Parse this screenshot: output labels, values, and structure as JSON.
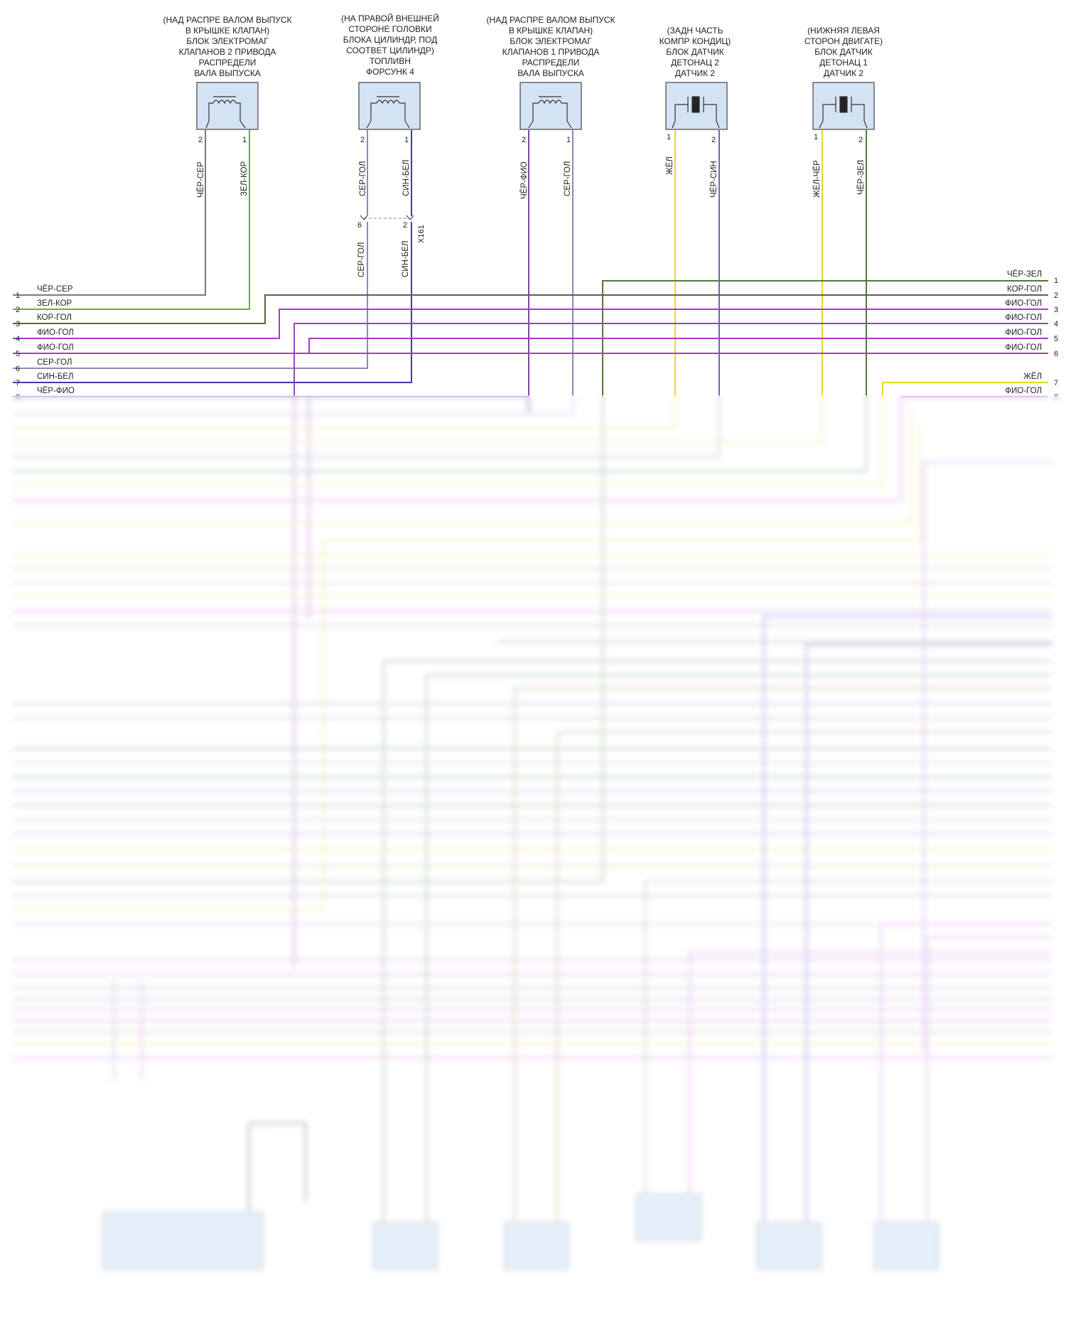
{
  "colors": {
    "gray": "#7a7a7a",
    "green": "#77a83a",
    "darkgreen": "#4f7a3b",
    "brown": "#6e5a44",
    "violet": "#a23fc4",
    "lightviolet": "#b980d8",
    "blue": "#3b3ab0",
    "yellow": "#e8d82b",
    "darkviolet": "#7a4aa0",
    "box_fill": "#d4e3f4"
  },
  "components": [
    {
      "id": "c1",
      "lines": [
        "(НАД РАСПРЕ ВАЛОМ ВЫПУСК",
        "В КРЫШКЕ КЛАПАН)",
        "БЛОК ЭЛЕКТРОМАГ",
        "КЛАПАНОВ 2 ПРИВОДА",
        "РАСПРЕДЕЛИ",
        "ВАЛА ВЫПУСКА"
      ],
      "icon": "coil-icon",
      "pins": [
        "2",
        "1"
      ],
      "wires": [
        "ЧЁР-СЕР",
        "ЗЕЛ-КОР"
      ]
    },
    {
      "id": "c2",
      "lines": [
        "(НА ПРАВОЙ ВНЕШНЕЙ",
        "СТОРОНЕ ГОЛОВКИ",
        "БЛОКА ЦИЛИНДР, ПОД",
        "СООТВЕТ ЦИЛИНДР)",
        "ТОПЛИВН",
        "ФОРСУНК 4"
      ],
      "icon": "coil-icon",
      "pins": [
        "2",
        "1"
      ],
      "wires": [
        "СЕР-ГОЛ",
        "СИН-БЕЛ"
      ]
    },
    {
      "id": "c3",
      "lines": [
        "(НАД РАСПРЕ ВАЛОМ ВЫПУСК",
        "В КРЫШКЕ КЛАПАН)",
        "БЛОК ЭЛЕКТРОМАГ",
        "КЛАПАНОВ 1 ПРИВОДА",
        "РАСПРЕДЕЛИ",
        "ВАЛА ВЫПУСКА"
      ],
      "icon": "coil-icon",
      "pins": [
        "2",
        "1"
      ],
      "wires": [
        "ЧЁР-ФИО",
        "СЕР-ГОЛ"
      ]
    },
    {
      "id": "c4",
      "lines": [
        "(ЗАДН ЧАСТЬ",
        "КОМПР КОНДИЦ)",
        "БЛОК ДАТЧИК",
        "ДЕТОНАЦ 2",
        "ДАТЧИК 2"
      ],
      "icon": "knock-sensor-icon",
      "pins": [
        "1",
        "2"
      ],
      "wires": [
        "ЖЁЛ",
        "ЧЁР-СИН"
      ]
    },
    {
      "id": "c5",
      "lines": [
        "(НИЖНЯЯ ЛЕВАЯ",
        "СТОРОН ДВИГАТЕ)",
        "БЛОК ДАТЧИК",
        "ДЕТОНАЦ 1",
        "ДАТЧИК 2"
      ],
      "icon": "knock-sensor-icon",
      "pins": [
        "1",
        "2"
      ],
      "wires": [
        "ЖЁЛ-ЧЁР",
        "ЧЁР-ЗЕЛ"
      ]
    }
  ],
  "connector_x161": {
    "name": "X161",
    "pins": [
      "6",
      "2"
    ],
    "wires": [
      "СЕР-ГОЛ",
      "СИН-БЕЛ"
    ]
  },
  "left_rows": [
    {
      "num": "1",
      "label": "ЧЁР-СЕР"
    },
    {
      "num": "2",
      "label": "ЗЕЛ-КОР"
    },
    {
      "num": "3",
      "label": "КОР-ГОЛ"
    },
    {
      "num": "4",
      "label": "ФИО-ГОЛ"
    },
    {
      "num": "5",
      "label": "ФИО-ГОЛ"
    },
    {
      "num": "6",
      "label": "СЕР-ГОЛ"
    },
    {
      "num": "7",
      "label": "СИН-БЕЛ"
    },
    {
      "num": "8",
      "label": "ЧЁР-ФИО"
    }
  ],
  "right_rows": [
    {
      "num": "1",
      "label": "ЧЁР-ЗЕЛ"
    },
    {
      "num": "2",
      "label": "КОР-ГОЛ"
    },
    {
      "num": "3",
      "label": "ФИО-ГОЛ"
    },
    {
      "num": "4",
      "label": "ФИО-ГОЛ"
    },
    {
      "num": "5",
      "label": "ФИО-ГОЛ"
    },
    {
      "num": "6",
      "label": "ФИО-ГОЛ"
    },
    {
      "num": "7",
      "label": "ЖЁЛ"
    },
    {
      "num": "8",
      "label": "ФИО-ГОЛ"
    }
  ]
}
